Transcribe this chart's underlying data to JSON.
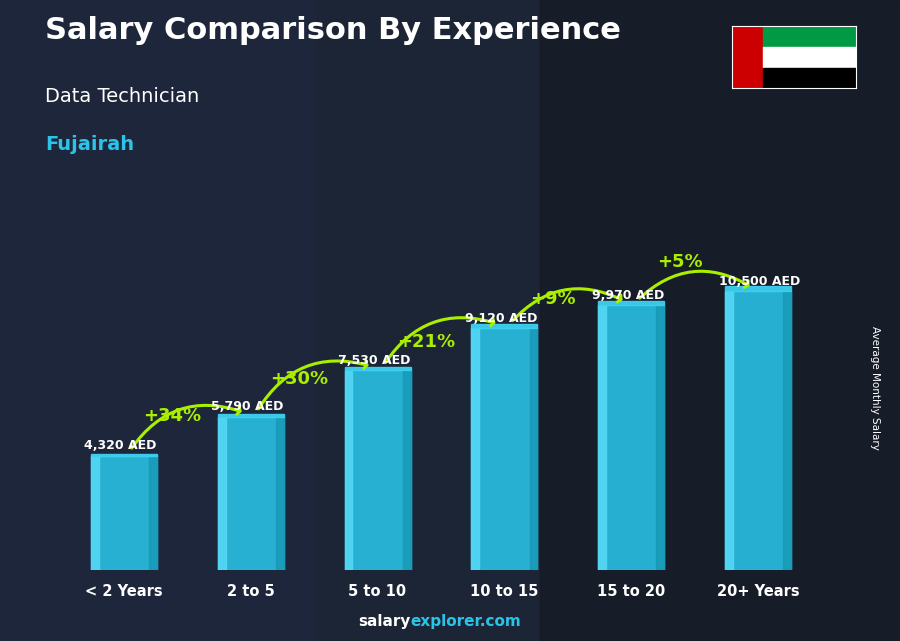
{
  "title": "Salary Comparison By Experience",
  "subtitle": "Data Technician",
  "city": "Fujairah",
  "categories": [
    "< 2 Years",
    "2 to 5",
    "5 to 10",
    "10 to 15",
    "15 to 20",
    "20+ Years"
  ],
  "values": [
    4320,
    5790,
    7530,
    9120,
    9970,
    10500
  ],
  "value_labels": [
    "4,320 AED",
    "5,790 AED",
    "7,530 AED",
    "9,120 AED",
    "9,970 AED",
    "10,500 AED"
  ],
  "pct_labels": [
    "+34%",
    "+30%",
    "+21%",
    "+9%",
    "+5%"
  ],
  "bar_color_main": "#29c4e8",
  "bar_color_left": "#55d8f5",
  "bar_color_right": "#1899b8",
  "bar_color_top": "#3dd0f0",
  "pct_color": "#aaee00",
  "value_label_color": "#ffffff",
  "title_color": "#ffffff",
  "subtitle_color": "#ffffff",
  "city_color": "#29c4e8",
  "bg_color": "#1e2535",
  "footer_salary_color": "#ffffff",
  "footer_explorer_color": "#29c4e8",
  "ylabel": "Average Monthly Salary",
  "ylim": [
    0,
    13500
  ],
  "flag_red": "#cc0001",
  "flag_green": "#009a44",
  "flag_white": "#ffffff",
  "flag_black": "#000000"
}
